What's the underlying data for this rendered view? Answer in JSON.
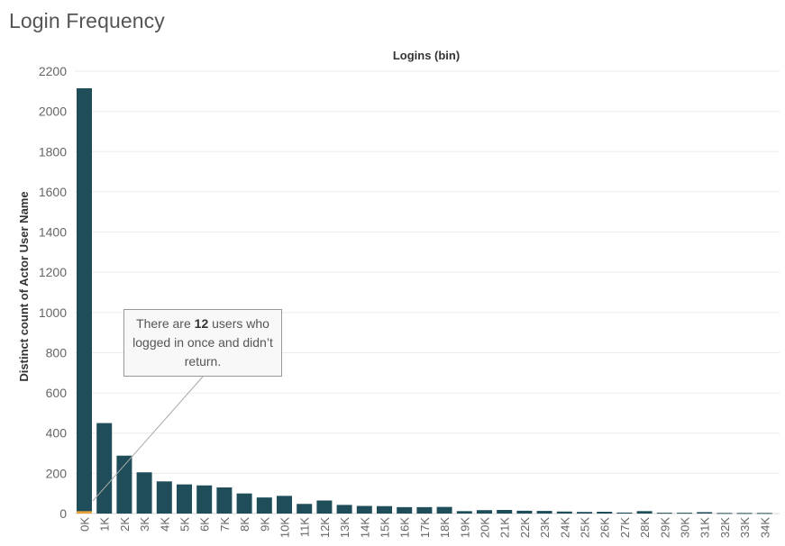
{
  "chart_data": {
    "type": "bar",
    "title": "Login Frequency",
    "xlabel": "Logins (bin)",
    "ylabel": "Distinct count of Actor User Name",
    "ylim": [
      0,
      2200
    ],
    "yticks": [
      0,
      200,
      400,
      600,
      800,
      1000,
      1200,
      1400,
      1600,
      1800,
      2000,
      2200
    ],
    "grid": true,
    "categories": [
      "0K",
      "1K",
      "2K",
      "3K",
      "4K",
      "5K",
      "6K",
      "7K",
      "8K",
      "9K",
      "10K",
      "11K",
      "12K",
      "13K",
      "14K",
      "15K",
      "16K",
      "17K",
      "18K",
      "19K",
      "20K",
      "21K",
      "22K",
      "23K",
      "24K",
      "25K",
      "26K",
      "27K",
      "28K",
      "29K",
      "30K",
      "31K",
      "32K",
      "33K",
      "34K"
    ],
    "values": [
      2115,
      450,
      288,
      205,
      160,
      145,
      140,
      130,
      100,
      80,
      88,
      48,
      65,
      43,
      38,
      37,
      32,
      32,
      33,
      12,
      17,
      18,
      14,
      13,
      10,
      8,
      9,
      5,
      12,
      4,
      4,
      7,
      3,
      3,
      3
    ],
    "highlight": {
      "category": "0K",
      "value": 12,
      "color": "#e8a33d"
    },
    "bar_color": "#1f4e5a",
    "annotation": {
      "pre": "There are ",
      "bold": "12",
      "post": " users who logged in once and didn’t return."
    }
  }
}
